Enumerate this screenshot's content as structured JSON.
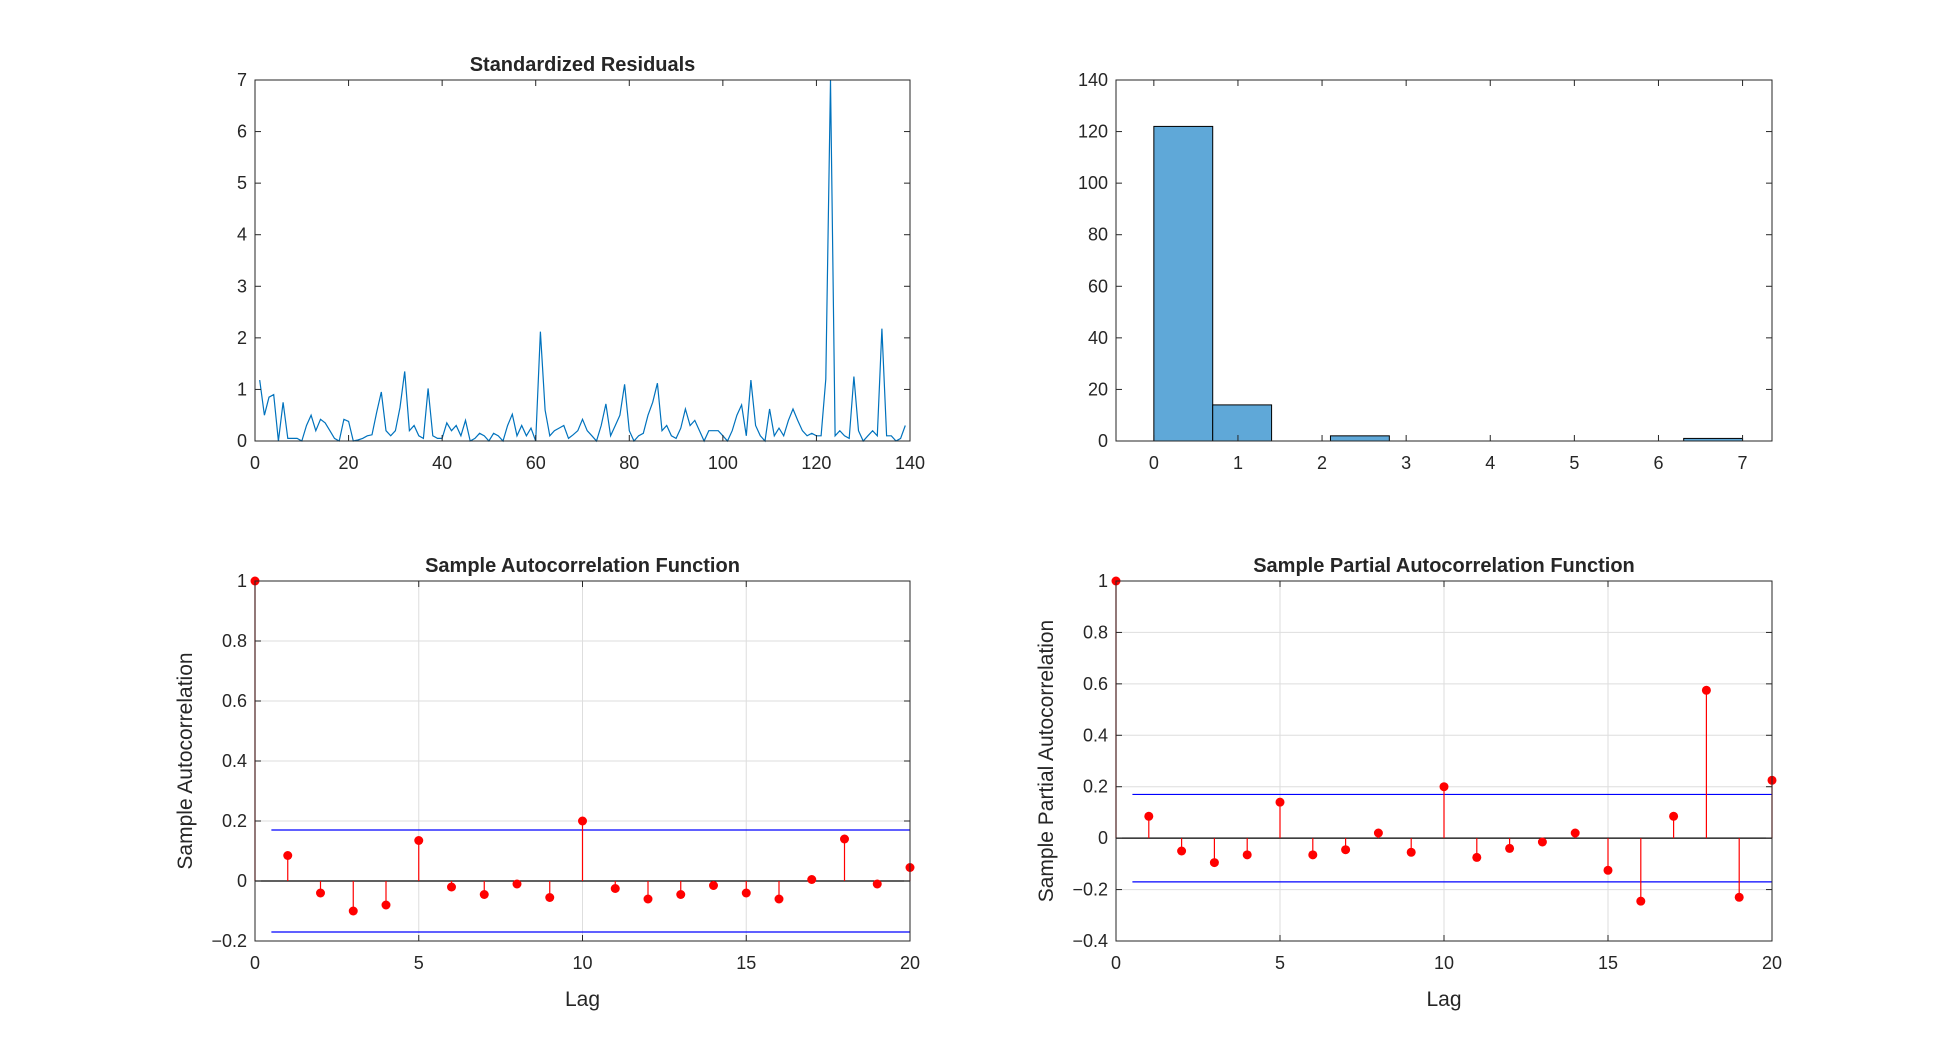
{
  "chart_data": [
    {
      "type": "line",
      "title": "Standardized Residuals",
      "xlabel": "",
      "ylabel": "",
      "xlim": [
        0,
        140
      ],
      "ylim": [
        0,
        7
      ],
      "xticks": [
        0,
        20,
        40,
        60,
        80,
        100,
        120,
        140
      ],
      "yticks": [
        0,
        1,
        2,
        3,
        4,
        5,
        6,
        7
      ],
      "grid": false,
      "series": [
        {
          "color": "#0072BD",
          "x": [
            1,
            2,
            3,
            4,
            5,
            6,
            7,
            8,
            9,
            10,
            11,
            12,
            13,
            14,
            15,
            16,
            17,
            18,
            19,
            20,
            21,
            22,
            23,
            24,
            25,
            26,
            27,
            28,
            29,
            30,
            31,
            32,
            33,
            34,
            35,
            36,
            37,
            38,
            39,
            40,
            41,
            42,
            43,
            44,
            45,
            46,
            47,
            48,
            49,
            50,
            51,
            52,
            53,
            54,
            55,
            56,
            57,
            58,
            59,
            60,
            61,
            62,
            63,
            64,
            65,
            66,
            67,
            68,
            69,
            70,
            71,
            72,
            73,
            74,
            75,
            76,
            77,
            78,
            79,
            80,
            81,
            82,
            83,
            84,
            85,
            86,
            87,
            88,
            89,
            90,
            91,
            92,
            93,
            94,
            95,
            96,
            97,
            98,
            99,
            100,
            101,
            102,
            103,
            104,
            105,
            106,
            107,
            108,
            109,
            110,
            111,
            112,
            113,
            114,
            115,
            116,
            117,
            118,
            119,
            120,
            121,
            122,
            123,
            124,
            125,
            126,
            127,
            128,
            129,
            130,
            131,
            132,
            133,
            134,
            135,
            136,
            137,
            138,
            139
          ],
          "y": [
            1.18,
            0.5,
            0.85,
            0.9,
            0.0,
            0.75,
            0.05,
            0.05,
            0.05,
            0.0,
            0.3,
            0.5,
            0.2,
            0.42,
            0.35,
            0.2,
            0.05,
            0.0,
            0.42,
            0.38,
            0.0,
            0.02,
            0.05,
            0.1,
            0.12,
            0.55,
            0.95,
            0.2,
            0.1,
            0.2,
            0.65,
            1.35,
            0.2,
            0.3,
            0.1,
            0.05,
            1.02,
            0.1,
            0.05,
            0.05,
            0.35,
            0.2,
            0.3,
            0.1,
            0.4,
            0.0,
            0.05,
            0.15,
            0.1,
            0.0,
            0.15,
            0.1,
            0.0,
            0.3,
            0.52,
            0.1,
            0.3,
            0.1,
            0.25,
            0.0,
            2.12,
            0.6,
            0.1,
            0.2,
            0.25,
            0.3,
            0.05,
            0.12,
            0.2,
            0.42,
            0.2,
            0.1,
            0.0,
            0.3,
            0.72,
            0.1,
            0.3,
            0.5,
            1.1,
            0.2,
            0.0,
            0.1,
            0.15,
            0.5,
            0.75,
            1.12,
            0.2,
            0.3,
            0.1,
            0.05,
            0.25,
            0.62,
            0.3,
            0.4,
            0.2,
            0.0,
            0.2,
            0.2,
            0.2,
            0.1,
            0.0,
            0.2,
            0.5,
            0.7,
            0.1,
            1.18,
            0.3,
            0.1,
            0.0,
            0.62,
            0.1,
            0.25,
            0.1,
            0.4,
            0.62,
            0.4,
            0.2,
            0.1,
            0.15,
            0.1,
            0.1,
            1.2,
            7.0,
            0.1,
            0.2,
            0.1,
            0.05,
            1.25,
            0.2,
            0.0,
            0.1,
            0.2,
            0.1,
            2.18,
            0.1,
            0.1,
            0.0,
            0.05,
            0.3
          ]
        }
      ]
    },
    {
      "type": "bar",
      "title": "",
      "xlabel": "",
      "ylabel": "",
      "xlim": [
        -0.45,
        7.35
      ],
      "ylim": [
        0,
        140
      ],
      "xticks": [
        0,
        1,
        2,
        3,
        4,
        5,
        6,
        7
      ],
      "yticks": [
        0,
        20,
        40,
        60,
        80,
        100,
        120,
        140
      ],
      "grid": false,
      "bin_edges": [
        0,
        0.7,
        1.4,
        2.1,
        2.8,
        3.5,
        4.2,
        4.9,
        5.6,
        6.3,
        7.0
      ],
      "values": [
        122,
        14,
        0,
        2,
        0,
        0,
        0,
        0,
        0,
        1
      ],
      "color": "#5FA8D8"
    },
    {
      "type": "stem",
      "title": "Sample Autocorrelation Function",
      "xlabel": "Lag",
      "ylabel": "Sample Autocorrelation",
      "xlim": [
        0,
        20
      ],
      "ylim": [
        -0.2,
        1
      ],
      "xticks": [
        0,
        5,
        10,
        15,
        20
      ],
      "yticks": [
        -0.2,
        0,
        0.2,
        0.4,
        0.6,
        0.8,
        1
      ],
      "grid": true,
      "lags": [
        0,
        1,
        2,
        3,
        4,
        5,
        6,
        7,
        8,
        9,
        10,
        11,
        12,
        13,
        14,
        15,
        16,
        17,
        18,
        19,
        20
      ],
      "values": [
        1.0,
        0.085,
        -0.04,
        -0.1,
        -0.08,
        0.135,
        -0.02,
        -0.045,
        -0.01,
        -0.055,
        0.2,
        -0.025,
        -0.06,
        -0.045,
        -0.015,
        -0.04,
        -0.06,
        0.005,
        0.14,
        -0.01,
        0.045
      ],
      "bounds": [
        0.17,
        -0.17
      ],
      "stem_color": "#FF0000",
      "bound_color": "#0000FF"
    },
    {
      "type": "stem",
      "title": "Sample Partial Autocorrelation Function",
      "xlabel": "Lag",
      "ylabel": "Sample Partial Autocorrelation",
      "xlim": [
        0,
        20
      ],
      "ylim": [
        -0.4,
        1
      ],
      "xticks": [
        0,
        5,
        10,
        15,
        20
      ],
      "yticks": [
        -0.4,
        -0.2,
        0,
        0.2,
        0.4,
        0.6,
        0.8,
        1
      ],
      "grid": true,
      "lags": [
        0,
        1,
        2,
        3,
        4,
        5,
        6,
        7,
        8,
        9,
        10,
        11,
        12,
        13,
        14,
        15,
        16,
        17,
        18,
        19,
        20
      ],
      "values": [
        1.0,
        0.085,
        -0.05,
        -0.095,
        -0.065,
        0.14,
        -0.065,
        -0.045,
        0.02,
        -0.055,
        0.2,
        -0.075,
        -0.04,
        -0.015,
        0.02,
        -0.125,
        -0.245,
        0.085,
        0.575,
        -0.23,
        0.225
      ],
      "bounds": [
        0.17,
        -0.17
      ],
      "stem_color": "#FF0000",
      "bound_color": "#0000FF"
    }
  ]
}
